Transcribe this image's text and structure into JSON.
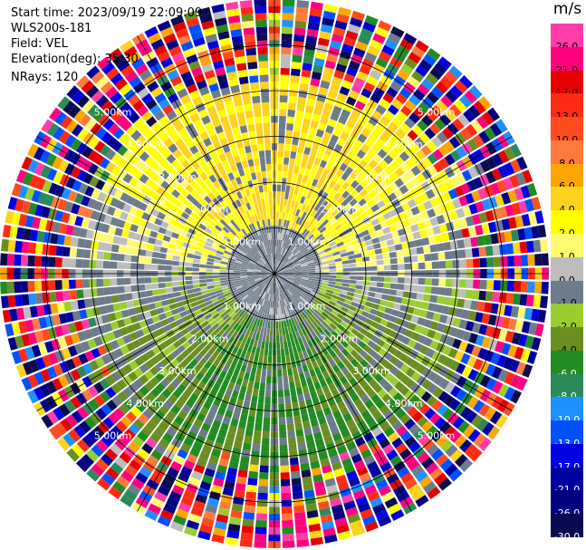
{
  "info": {
    "start_time": "Start time: 2023/09/19 22:09:09",
    "site": "WLS200s-181",
    "field": "Field: VEL",
    "elevation": "Elevation(deg): 35.30",
    "nrays": "NRays: 120"
  },
  "colorbar": {
    "unit": "m/s",
    "levels": [
      {
        "label": "26.0",
        "color": "#ff3da8"
      },
      {
        "label": "21.0",
        "color": "#ff007f"
      },
      {
        "label": "17.0",
        "color": "#e60000"
      },
      {
        "label": "13.0",
        "color": "#ff2a14"
      },
      {
        "label": "10.0",
        "color": "#ff4b1e"
      },
      {
        "label": "8.0",
        "color": "#ff7a3c"
      },
      {
        "label": "6.0",
        "color": "#ffa500"
      },
      {
        "label": "4.0",
        "color": "#ffd21e"
      },
      {
        "label": "2.0",
        "color": "#ffff00"
      },
      {
        "label": "1.0",
        "color": "#fffa70"
      },
      {
        "label": "0.0",
        "color": "#bdbdbd"
      },
      {
        "label": "-1.0",
        "color": "#6e7b8b"
      },
      {
        "label": "-2.0",
        "color": "#9acd32"
      },
      {
        "label": "-4.0",
        "color": "#6b8e23"
      },
      {
        "label": "-6.0",
        "color": "#228b22"
      },
      {
        "label": "-8.0",
        "color": "#2a8a5a"
      },
      {
        "label": "-10.0",
        "color": "#1e90ff"
      },
      {
        "label": "-13.0",
        "color": "#0050ff"
      },
      {
        "label": "-17.0",
        "color": "#0000e0"
      },
      {
        "label": "-21.0",
        "color": "#0000a0"
      },
      {
        "label": "-26.0",
        "color": "#000080"
      },
      {
        "label": "-30.0",
        "color": "#0a0a50"
      }
    ]
  },
  "chart_data": {
    "type": "heatmap",
    "projection": "polar-ppi",
    "nrays": 120,
    "range_rings_km": [
      "1.00km",
      "2.00km",
      "3.00km",
      "4.00km",
      "5.00km"
    ],
    "max_range_km": 6.0,
    "grid_spokes_deg": [
      0,
      30,
      60,
      90,
      120,
      150,
      180,
      210,
      240,
      270,
      300,
      330
    ],
    "pattern": {
      "northern_sector": "positive velocity 1.0 to 6.0 m/s (yellow/orange) out to ~3.5 km",
      "southern_sector": "negative velocity -1.0 to -8.0 m/s (green) out to ~3.5 km",
      "near_center": "near zero (-1.0 to 0.0, grey)",
      "outer_ring": "noise, full colorbar range, beyond ~4.0 km"
    }
  }
}
